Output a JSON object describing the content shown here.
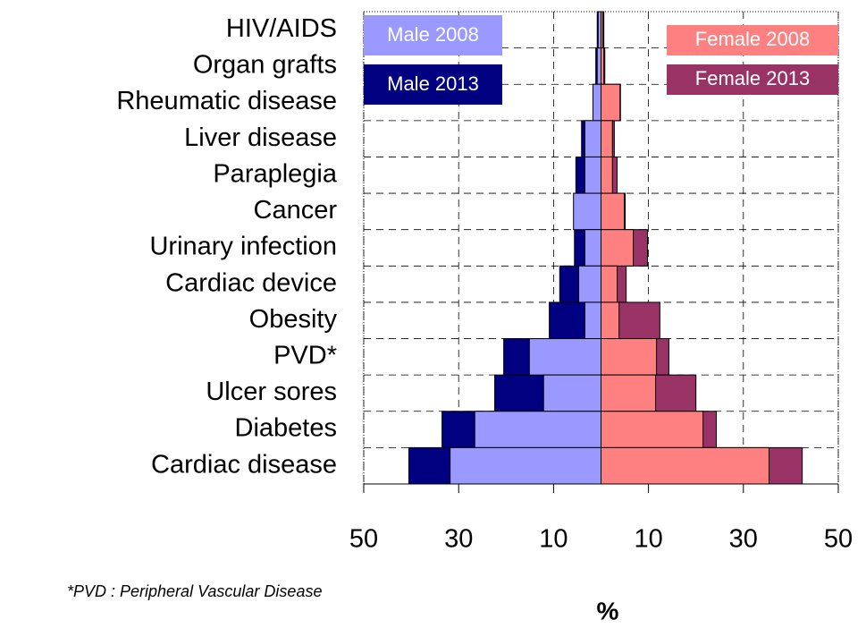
{
  "chart_data": {
    "type": "diverging-bar",
    "categories": [
      "HIV/AIDS",
      "Organ grafts",
      "Rheumatic disease",
      "Liver disease",
      "Paraplegia",
      "Cancer",
      "Urinary infection",
      "Cardiac device",
      "Obesity",
      "PVD*",
      "Ulcer sores",
      "Diabetes",
      "Cardiac disease"
    ],
    "series": [
      {
        "name": "Male 2013",
        "color": "#000080",
        "values": [
          -0.8,
          -1.1,
          -1.5,
          -4.1,
          -5.3,
          -5.6,
          -5.6,
          -8.7,
          -10.9,
          -20.5,
          -22.4,
          -33.5,
          -40.5
        ]
      },
      {
        "name": "Male 2008",
        "color": "#9999ff",
        "values": [
          -0.6,
          -0.8,
          -1.7,
          -3.4,
          -3.4,
          -5.8,
          -3.4,
          -4.7,
          -3.4,
          -15.1,
          -12.1,
          -26.6,
          -31.8
        ]
      },
      {
        "name": "Female 2013",
        "color": "#993366",
        "values": [
          0.6,
          0.8,
          4.1,
          2.8,
          3.4,
          5.1,
          9.8,
          5.3,
          12.4,
          14.3,
          20.0,
          24.3,
          42.4
        ]
      },
      {
        "name": "Female 2008",
        "color": "#ff8080",
        "values": [
          0.4,
          0.6,
          4.0,
          2.4,
          2.4,
          4.9,
          6.8,
          3.4,
          3.8,
          11.7,
          11.5,
          21.5,
          35.4
        ]
      }
    ],
    "xlim": [
      -50,
      50
    ],
    "xticks": [
      {
        "value": -50,
        "label": "50"
      },
      {
        "value": -30,
        "label": "30"
      },
      {
        "value": -10,
        "label": "10"
      },
      10,
      30,
      50
    ],
    "xlabel": "%",
    "grid": true,
    "footnote": "*PVD : Peripheral Vascular Disease"
  }
}
